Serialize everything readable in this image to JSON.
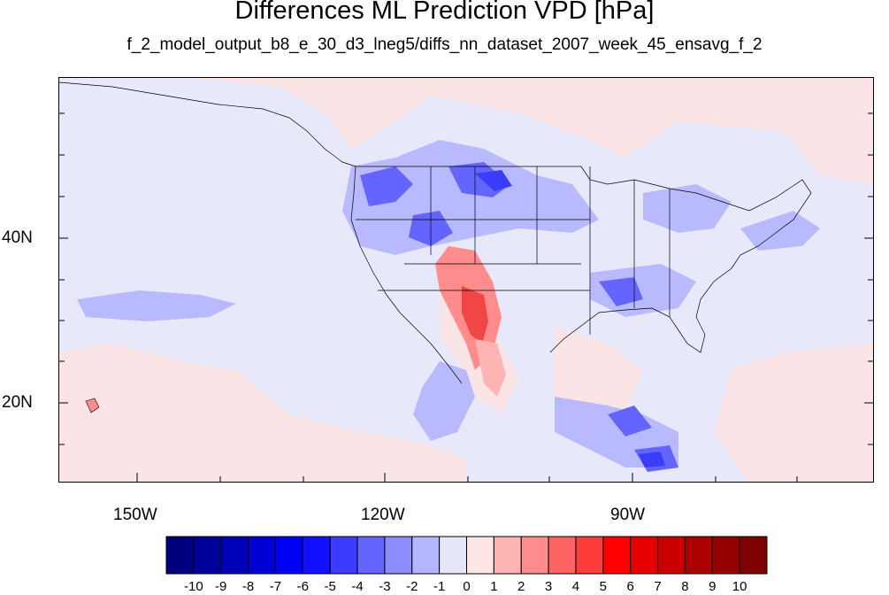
{
  "title": "Differences ML Prediction VPD [hPa]",
  "subtitle": "f_2_model_output_b8_e_30_d3_lneg5/diffs_nn_dataset_2007_week_45_ensavg_f_2",
  "axes": {
    "lon_labels": [
      "150W",
      "120W",
      "90W"
    ],
    "lat_labels": [
      "40N",
      "20N"
    ]
  },
  "colorbar": {
    "labels": [
      "-10",
      "-9",
      "-8",
      "-7",
      "-6",
      "-5",
      "-4",
      "-3",
      "-2",
      "-1",
      "0",
      "1",
      "2",
      "3",
      "4",
      "5",
      "6",
      "7",
      "8",
      "9",
      "10"
    ],
    "colors": [
      "#00007e",
      "#00009b",
      "#0000b8",
      "#0000d5",
      "#0000f2",
      "#1010ff",
      "#3c3cff",
      "#6464ff",
      "#8c8cff",
      "#b4b4ff",
      "#e6e6fa",
      "#ffe6e6",
      "#ffb4b4",
      "#ff8c8c",
      "#ff6464",
      "#ff3c3c",
      "#ff0000",
      "#e60000",
      "#c80000",
      "#aa0000",
      "#960000",
      "#7e0000"
    ]
  },
  "colors": {
    "background_field": "#e8e8fb",
    "positive_light": "#fbe4e4",
    "positive_mid": "#ff8c8c",
    "positive_strong": "#f04646",
    "negative_light": "#b4b4ff",
    "negative_mid": "#8c8cff",
    "negative_strong": "#4646f0"
  }
}
